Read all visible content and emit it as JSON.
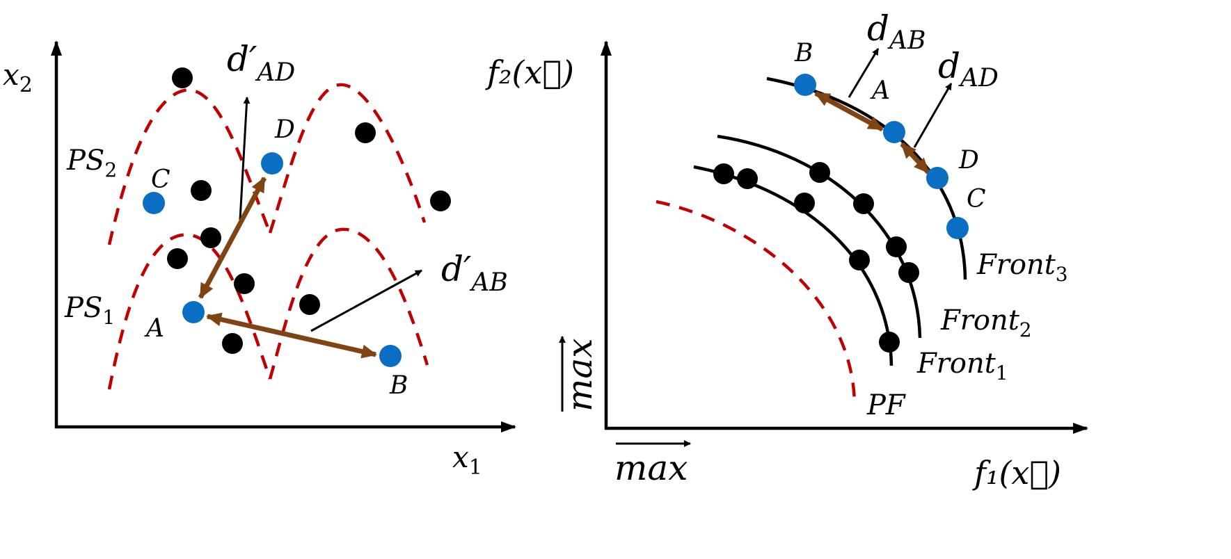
{
  "left_panel": {
    "y_axis_label": {
      "base": "x",
      "sub": "2"
    },
    "x_axis_label": {
      "base": "x",
      "sub": "1"
    },
    "ps2_label": {
      "base": "PS",
      "sub": "2"
    },
    "ps1_label": {
      "base": "PS",
      "sub": "1"
    },
    "dist_ad_label": {
      "base": "d′",
      "sub": "AD"
    },
    "dist_ab_label": {
      "base": "d′",
      "sub": "AB"
    },
    "points": {
      "a": "A",
      "b": "B",
      "c": "C",
      "d": "D"
    }
  },
  "right_panel": {
    "y_axis_label": "f₂(x⃗)",
    "x_axis_label": "f₁(x⃗)",
    "x_max_label": "max",
    "y_max_label": "max",
    "dist_ab_label": {
      "base": "d",
      "sub": "AB"
    },
    "dist_ad_label": {
      "base": "d",
      "sub": "AD"
    },
    "points": {
      "a": "A",
      "b": "B",
      "c": "C",
      "d": "D"
    },
    "front1_label": {
      "base": "Front",
      "sub": "1"
    },
    "front2_label": {
      "base": "Front",
      "sub": "2"
    },
    "front3_label": {
      "base": "Front",
      "sub": "3"
    },
    "pf_label": "PF"
  },
  "colors": {
    "pareto_dashed": "#c00000",
    "highlight_points": "#0a6fc2",
    "distance_arrows": "#7f4414",
    "other_points": "#000000"
  }
}
